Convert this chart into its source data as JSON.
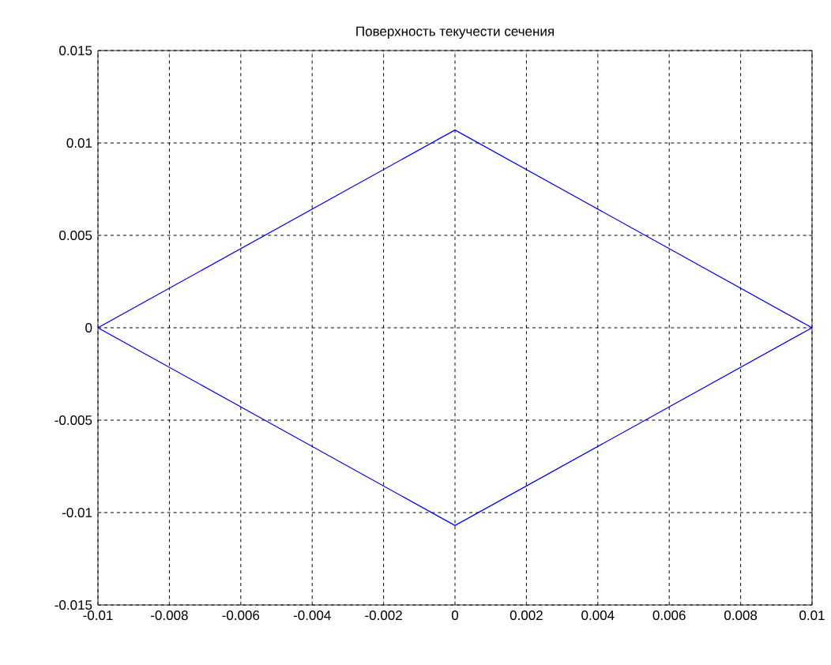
{
  "chart_data": {
    "type": "line",
    "title": "Поверхность текучести сечения",
    "series": [
      {
        "color": "#0000ff",
        "x": [
          -0.01,
          0,
          0.01
        ],
        "values": [
          0,
          0.0107,
          0
        ]
      },
      {
        "color": "#0000ff",
        "x": [
          -0.01,
          0,
          0.01
        ],
        "values": [
          0,
          -0.0107,
          0
        ]
      }
    ],
    "xlim": [
      -0.01,
      0.01
    ],
    "ylim": [
      -0.015,
      0.015
    ],
    "xticks": [
      -0.01,
      -0.008,
      -0.006,
      -0.004,
      -0.002,
      0,
      0.002,
      0.004,
      0.006,
      0.008,
      0.01
    ],
    "yticks": [
      -0.015,
      -0.01,
      -0.005,
      0,
      0.005,
      0.01,
      0.015
    ],
    "grid": true,
    "line_style": "solid",
    "marker": "none"
  }
}
